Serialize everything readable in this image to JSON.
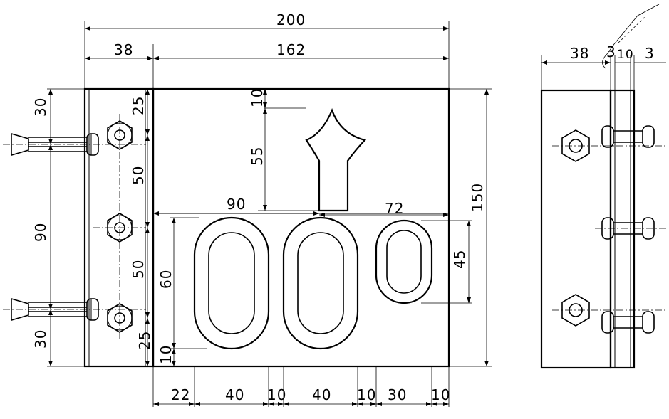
{
  "drawing": {
    "front_view": {
      "overall_width": "200",
      "left_strip_width": "38",
      "main_plate_width": "162",
      "overall_height": "150",
      "left_height_top": "30",
      "left_height_mid": "90",
      "left_height_bottom": "30",
      "bolt_top_offset": "25",
      "bolt_spacing_upper": "50",
      "bolt_spacing_lower": "50",
      "bolt_bottom_offset": "25",
      "top_gap": "10",
      "tooth_height": "55",
      "base_line_length": "90",
      "oval_slot_height": "60",
      "bottom_gap": "10",
      "small_slot_width": "72",
      "small_slot_height": "45",
      "bottom_chain": [
        "22",
        "40",
        "10",
        "40",
        "10",
        "30",
        "10"
      ]
    },
    "side_view": {
      "body_thickness": "38",
      "gap_a": "3",
      "strip_thickness": "10",
      "gap_b": "3"
    }
  }
}
